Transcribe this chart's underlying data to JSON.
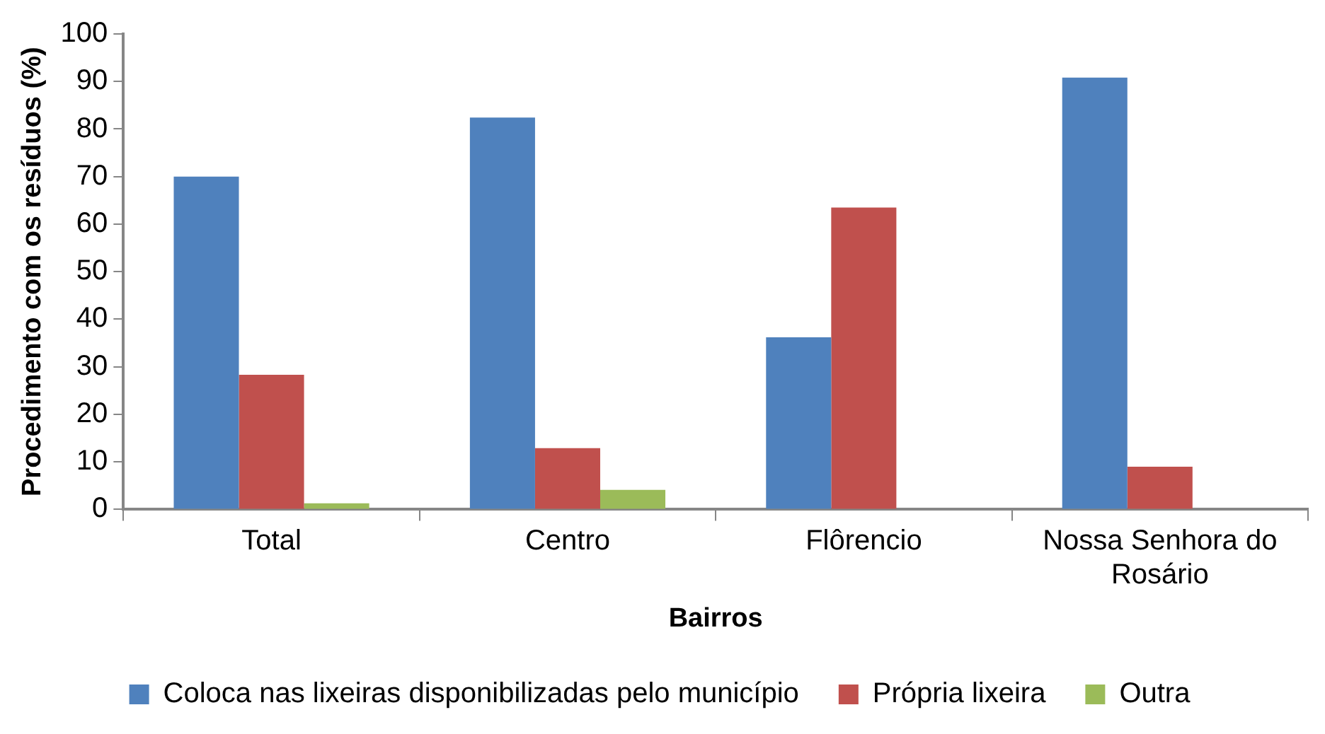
{
  "chart_data": {
    "type": "bar",
    "xlabel": "Bairros",
    "ylabel": "Procedimento com os resíduos (%)",
    "categories": [
      "Total",
      "Centro",
      "Flôrencio",
      "Nossa Senhora do Rosário"
    ],
    "series": [
      {
        "name": "Coloca nas lixeiras disponibilizadas pelo município",
        "color": "#4f81bd",
        "values": [
          70,
          82.4,
          36.2,
          90.8
        ]
      },
      {
        "name": "Própria lixeira",
        "color": "#c0504d",
        "values": [
          28.3,
          12.9,
          63.5,
          9
        ]
      },
      {
        "name": "Outra",
        "color": "#9bbb59",
        "values": [
          1.3,
          4.1,
          0,
          0
        ]
      }
    ],
    "ylim": [
      0,
      100
    ],
    "yticks": [
      0,
      10,
      20,
      30,
      40,
      50,
      60,
      70,
      80,
      90,
      100
    ],
    "grid": false,
    "legend": "bottom"
  }
}
